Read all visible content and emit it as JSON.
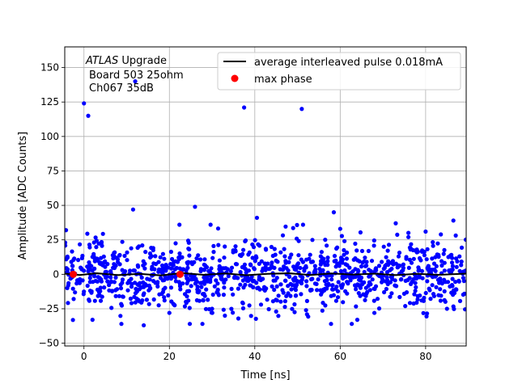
{
  "chart_data": {
    "type": "scatter",
    "title": "",
    "xlabel": "Time [ns]",
    "ylabel": "Amplitude [ADC Counts]",
    "xlim": [
      -4.5,
      89.5
    ],
    "ylim": [
      -52,
      165
    ],
    "xticks": [
      0,
      20,
      40,
      60,
      80
    ],
    "yticks": [
      -50,
      -25,
      0,
      25,
      50,
      75,
      100,
      125,
      150
    ],
    "grid": true,
    "legend": "top-right",
    "annotation": {
      "experiment": "ATLAS",
      "suffix": " Upgrade",
      "lines": [
        "Board 503 25ohm",
        "Ch067 35dB"
      ]
    },
    "series": [
      {
        "name": "average interleaved pulse 0.018mA",
        "kind": "line",
        "color": "#000000",
        "x": [
          -4.5,
          -1,
          3,
          8,
          13,
          18,
          23,
          28,
          33,
          38,
          43,
          48,
          53,
          58,
          63,
          68,
          73,
          78,
          83,
          89.5
        ],
        "y": [
          0.5,
          -0.5,
          0.8,
          -0.6,
          0.4,
          -0.8,
          0.9,
          -0.4,
          0.6,
          -0.7,
          0.3,
          0.8,
          -0.5,
          0.6,
          -0.3,
          0.5,
          -0.6,
          0.4,
          -0.4,
          0.5
        ]
      },
      {
        "name": "",
        "kind": "points",
        "color": "#0000ff",
        "x": [
          0,
          1,
          12,
          37.5,
          51,
          26,
          58.5,
          40.5,
          11.5,
          -4.2,
          -4.4,
          86.5,
          73,
          60,
          80,
          2,
          14,
          33,
          20,
          64,
          52,
          45,
          68,
          30,
          85
        ],
        "y": [
          124,
          115,
          140,
          121,
          120,
          49,
          45,
          41,
          47,
          32,
          23,
          39,
          37,
          33,
          31,
          -33,
          -37,
          -30,
          -28,
          -33,
          -26,
          -27,
          -28,
          -25,
          -25
        ]
      },
      {
        "name": "max phase",
        "kind": "points",
        "color": "#ff0000",
        "x": [
          -2.5,
          22.5
        ],
        "y": [
          0,
          0
        ]
      }
    ],
    "random_cloud": {
      "count": 1100,
      "x_range": [
        -4.5,
        89.5
      ],
      "center": 0,
      "std": 12,
      "clip": [
        -36,
        36
      ]
    }
  }
}
